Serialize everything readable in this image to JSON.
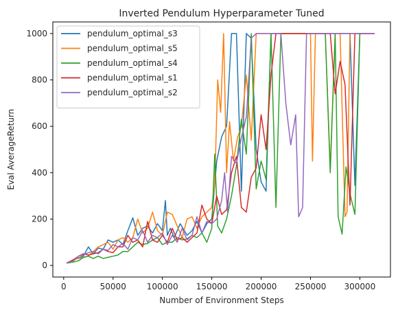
{
  "chart_data": {
    "type": "line",
    "title": "Inverted Pendulum Hyperparameter Tuned",
    "xlabel": "Number of Environment Steps",
    "ylabel": "Eval AverageReturn",
    "xlim": [
      -11000,
      331000
    ],
    "ylim": [
      -50,
      1050
    ],
    "xticks": [
      0,
      50000,
      100000,
      150000,
      200000,
      250000,
      300000
    ],
    "xtick_labels": [
      "0",
      "50000",
      "100000",
      "150000",
      "200000",
      "250000",
      "300000"
    ],
    "yticks": [
      0,
      200,
      400,
      600,
      800,
      1000
    ],
    "ytick_labels": [
      "0",
      "200",
      "400",
      "600",
      "800",
      "1000"
    ],
    "grid": false,
    "legend_position": "top-left",
    "series": [
      {
        "name": "pendulum_optimal_s3",
        "color": "#1f77b4",
        "x": [
          3000,
          10000,
          20000,
          25000,
          30000,
          35000,
          40000,
          45000,
          50000,
          55000,
          60000,
          65000,
          70000,
          75000,
          80000,
          85000,
          90000,
          95000,
          100000,
          103000,
          105000,
          108000,
          112000,
          118000,
          125000,
          130000,
          135000,
          140000,
          145000,
          150000,
          155000,
          160000,
          165000,
          170000,
          175000,
          180000,
          185000,
          190000,
          195000,
          200000,
          205000,
          210000,
          215000,
          220000,
          225000,
          230000,
          235000,
          240000,
          245000,
          250000,
          255000,
          260000,
          265000,
          270000,
          275000,
          280000,
          285000,
          290000,
          295000,
          300000,
          305000,
          315000
        ],
        "y": [
          10,
          25,
          40,
          80,
          50,
          75,
          70,
          110,
          100,
          110,
          90,
          150,
          205,
          130,
          160,
          170,
          140,
          180,
          150,
          280,
          130,
          160,
          120,
          180,
          130,
          150,
          190,
          140,
          180,
          200,
          450,
          555,
          600,
          1000,
          1000,
          320,
          1000,
          980,
          500,
          360,
          320,
          1000,
          1000,
          1000,
          1000,
          1000,
          1000,
          1000,
          1000,
          1000,
          1000,
          1000,
          1000,
          1000,
          1000,
          1000,
          1000,
          1000,
          345,
          1000,
          1000,
          1000
        ]
      },
      {
        "name": "pendulum_optimal_s5",
        "color": "#ff7f0e",
        "x": [
          3000,
          10000,
          20000,
          25000,
          30000,
          35000,
          40000,
          45000,
          50000,
          55000,
          60000,
          65000,
          70000,
          75000,
          80000,
          85000,
          90000,
          95000,
          100000,
          105000,
          110000,
          115000,
          120000,
          125000,
          130000,
          135000,
          140000,
          145000,
          150000,
          153000,
          156000,
          159000,
          162000,
          165000,
          168000,
          172000,
          176000,
          180000,
          185000,
          190000,
          195000,
          200000,
          205000,
          210000,
          215000,
          220000,
          225000,
          230000,
          235000,
          240000,
          245000,
          250000,
          252000,
          255000,
          260000,
          265000,
          270000,
          275000,
          280000,
          285000,
          287000,
          290000,
          295000,
          300000,
          305000,
          310000,
          315000
        ],
        "y": [
          10,
          25,
          35,
          40,
          60,
          80,
          90,
          100,
          70,
          110,
          120,
          100,
          120,
          200,
          140,
          160,
          230,
          150,
          130,
          230,
          220,
          170,
          120,
          200,
          210,
          160,
          210,
          230,
          250,
          350,
          800,
          660,
          1000,
          400,
          620,
          450,
          550,
          600,
          820,
          540,
          1000,
          1000,
          1000,
          1000,
          1000,
          1000,
          1000,
          1000,
          1000,
          1000,
          1000,
          1000,
          450,
          1000,
          1000,
          1000,
          420,
          1000,
          1000,
          210,
          230,
          1000,
          1000,
          1000,
          1000,
          1000,
          1000
        ]
      },
      {
        "name": "pendulum_optimal_s4",
        "color": "#2ca02c",
        "x": [
          3000,
          10000,
          15000,
          20000,
          25000,
          30000,
          35000,
          40000,
          45000,
          50000,
          55000,
          60000,
          65000,
          70000,
          75000,
          80000,
          85000,
          90000,
          95000,
          100000,
          105000,
          110000,
          115000,
          120000,
          125000,
          130000,
          135000,
          140000,
          145000,
          150000,
          153000,
          156000,
          160000,
          165000,
          170000,
          175000,
          180000,
          185000,
          190000,
          195000,
          200000,
          205000,
          210000,
          215000,
          220000,
          225000,
          230000,
          235000,
          240000,
          245000,
          250000,
          255000,
          260000,
          265000,
          270000,
          275000,
          278000,
          282000,
          286000,
          290000,
          295000,
          300000,
          310000,
          315000
        ],
        "y": [
          10,
          15,
          20,
          35,
          40,
          30,
          40,
          30,
          35,
          40,
          45,
          60,
          60,
          80,
          100,
          90,
          95,
          110,
          120,
          90,
          100,
          100,
          120,
          110,
          115,
          130,
          120,
          140,
          100,
          160,
          480,
          170,
          140,
          200,
          300,
          430,
          630,
          480,
          1000,
          330,
          450,
          370,
          1000,
          250,
          1000,
          1000,
          1000,
          1000,
          1000,
          1000,
          1000,
          1000,
          1000,
          1000,
          400,
          1000,
          210,
          135,
          425,
          310,
          220,
          1000,
          1000,
          1000
        ]
      },
      {
        "name": "pendulum_optimal_s1",
        "color": "#d62728",
        "x": [
          3000,
          10000,
          15000,
          20000,
          25000,
          30000,
          35000,
          40000,
          45000,
          50000,
          55000,
          60000,
          65000,
          70000,
          75000,
          80000,
          85000,
          90000,
          95000,
          100000,
          105000,
          110000,
          115000,
          120000,
          125000,
          130000,
          135000,
          140000,
          145000,
          150000,
          155000,
          160000,
          165000,
          170000,
          175000,
          180000,
          185000,
          190000,
          195000,
          200000,
          205000,
          210000,
          215000,
          220000,
          225000,
          230000,
          235000,
          240000,
          245000,
          250000,
          255000,
          260000,
          265000,
          270000,
          275000,
          280000,
          285000,
          290000,
          295000,
          300000,
          310000,
          315000
        ],
        "y": [
          10,
          25,
          40,
          50,
          45,
          50,
          55,
          70,
          60,
          55,
          80,
          80,
          130,
          100,
          110,
          80,
          190,
          110,
          100,
          130,
          100,
          160,
          110,
          120,
          100,
          120,
          140,
          260,
          200,
          180,
          300,
          220,
          240,
          400,
          470,
          250,
          230,
          380,
          420,
          650,
          500,
          820,
          1000,
          1000,
          1000,
          1000,
          1000,
          1000,
          1000,
          1000,
          1000,
          1000,
          1000,
          1000,
          740,
          880,
          780,
          260,
          1000,
          1000,
          1000,
          1000
        ]
      },
      {
        "name": "pendulum_optimal_s2",
        "color": "#9467bd",
        "x": [
          3000,
          10000,
          15000,
          20000,
          25000,
          30000,
          35000,
          40000,
          45000,
          50000,
          55000,
          60000,
          65000,
          70000,
          75000,
          80000,
          85000,
          90000,
          95000,
          100000,
          105000,
          110000,
          115000,
          120000,
          125000,
          130000,
          135000,
          140000,
          145000,
          150000,
          155000,
          160000,
          163000,
          166000,
          170000,
          175000,
          180000,
          185000,
          190000,
          195000,
          200000,
          205000,
          210000,
          215000,
          220000,
          225000,
          230000,
          235000,
          238000,
          242000,
          246000,
          250000,
          255000,
          260000,
          265000,
          270000,
          275000,
          280000,
          285000,
          290000,
          295000,
          300000,
          310000,
          315000
        ],
        "y": [
          10,
          20,
          40,
          45,
          55,
          60,
          50,
          70,
          65,
          90,
          80,
          95,
          70,
          120,
          110,
          150,
          100,
          130,
          120,
          140,
          90,
          130,
          100,
          160,
          110,
          130,
          210,
          140,
          190,
          180,
          200,
          280,
          400,
          230,
          470,
          440,
          550,
          640,
          980,
          1000,
          1000,
          1000,
          1000,
          1000,
          1000,
          700,
          520,
          650,
          210,
          250,
          1000,
          1000,
          1000,
          1000,
          1000,
          1000,
          1000,
          1000,
          1000,
          1000,
          1000,
          1000,
          1000,
          1000
        ]
      }
    ]
  }
}
